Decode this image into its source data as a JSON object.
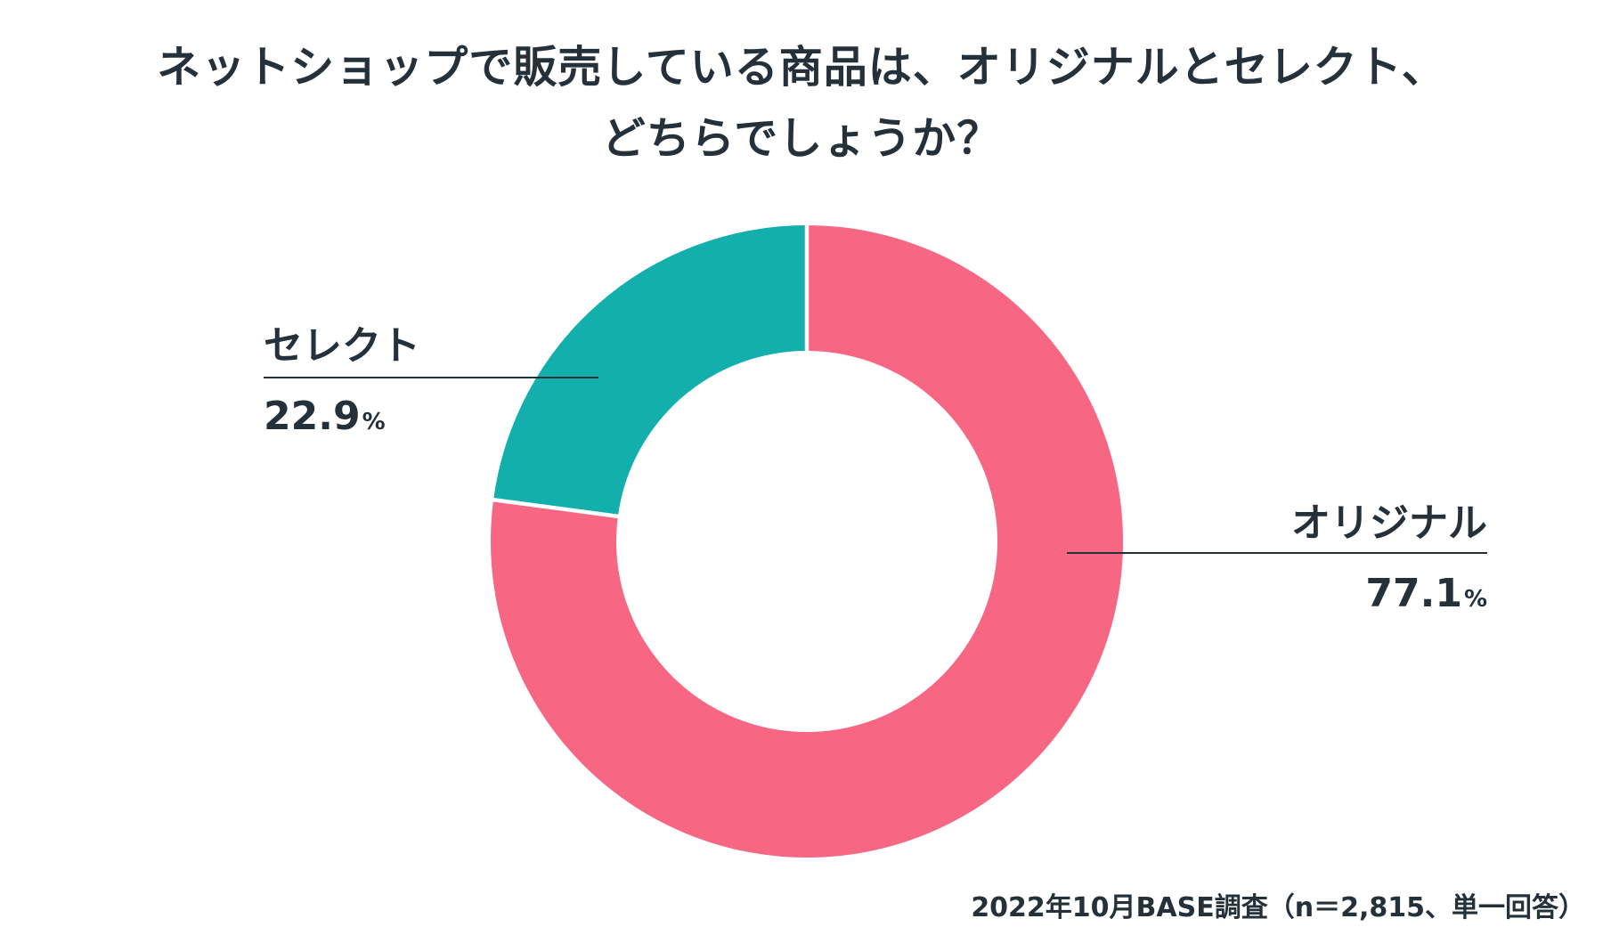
{
  "chart_data": {
    "type": "pie",
    "title_lines": [
      "ネットショップで販売している商品は、オリジナルとセレクト、",
      "どちらでしょうか？"
    ],
    "source": "2022年10月BASE調査（n＝2,815、単一回答）",
    "slices": [
      {
        "label": "オリジナル",
        "value": 77.1,
        "display_value": "77.1",
        "unit": "%",
        "color": "#f76683"
      },
      {
        "label": "セレクト",
        "value": 22.9,
        "display_value": "22.9",
        "unit": "%",
        "color": "#12afac"
      }
    ],
    "donut": true,
    "legend": "none"
  }
}
